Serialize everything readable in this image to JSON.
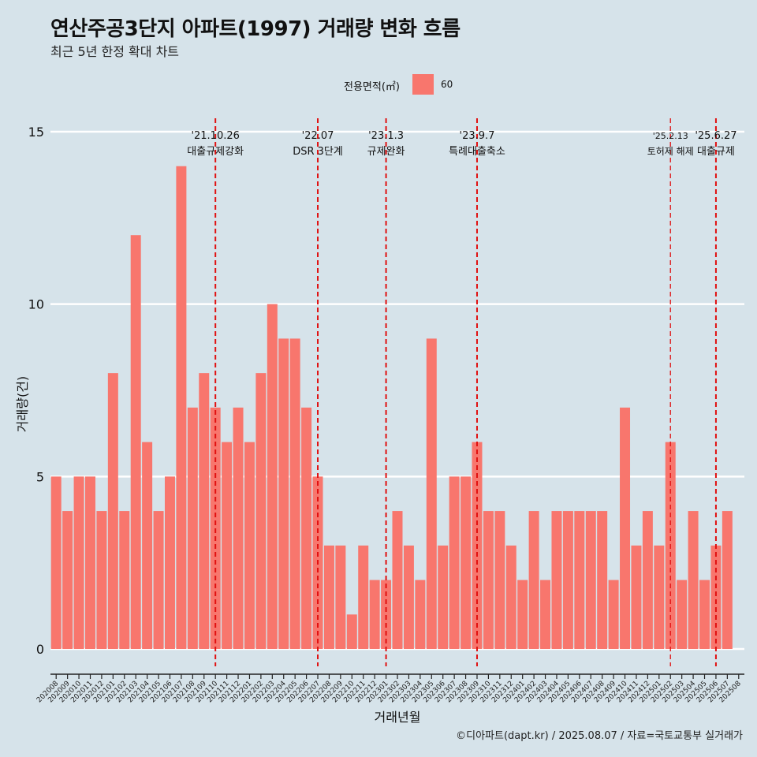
{
  "header": {
    "title": "연산주공3단지 아파트(1997) 거래량 변화 흐름",
    "subtitle": "최근 5년 한정 확대 차트"
  },
  "legend": {
    "title": "전용면적(㎡)",
    "items": [
      {
        "label": "60",
        "color": "#f8766d"
      }
    ]
  },
  "caption": "©디아파트(dapt.kr) / 2025.08.07 / 자료=국토교통부 실거래가",
  "chart_data": {
    "type": "bar",
    "title": "연산주공3단지 아파트(1997) 거래량 변화 흐름",
    "subtitle": "최근 5년 한정 확대 차트",
    "xlabel": "거래년월",
    "ylabel": "거래량(건)",
    "ylim": [
      -0.6,
      16
    ],
    "yticks": [
      0,
      5,
      10,
      15
    ],
    "grid": "horizontal",
    "legend_position": "top",
    "bar_color": "#f8766d",
    "categories": [
      "202008",
      "202009",
      "202010",
      "202011",
      "202012",
      "202101",
      "202102",
      "202103",
      "202104",
      "202105",
      "202106",
      "202107",
      "202108",
      "202109",
      "202110",
      "202111",
      "202112",
      "202201",
      "202202",
      "202203",
      "202204",
      "202205",
      "202206",
      "202207",
      "202208",
      "202209",
      "202210",
      "202211",
      "202212",
      "202301",
      "202302",
      "202303",
      "202304",
      "202305",
      "202306",
      "202307",
      "202308",
      "202309",
      "202310",
      "202311",
      "202312",
      "202401",
      "202402",
      "202403",
      "202404",
      "202405",
      "202406",
      "202407",
      "202408",
      "202409",
      "202410",
      "202411",
      "202412",
      "202501",
      "202502",
      "202503",
      "202504",
      "202505",
      "202506",
      "202507",
      "202508"
    ],
    "series": [
      {
        "name": "60",
        "values": [
          5,
          4,
          5,
          5,
          4,
          8,
          4,
          12,
          6,
          4,
          5,
          14,
          7,
          8,
          7,
          6,
          7,
          6,
          8,
          10,
          9,
          9,
          7,
          5,
          3,
          3,
          1,
          3,
          2,
          2,
          4,
          3,
          2,
          9,
          3,
          5,
          5,
          6,
          4,
          4,
          3,
          2,
          4,
          2,
          4,
          4,
          4,
          4,
          4,
          2,
          7,
          3,
          4,
          3,
          6,
          2,
          4,
          2,
          3,
          4,
          0
        ]
      }
    ],
    "annotations": [
      {
        "category": "202110",
        "date": "'21.10.26",
        "text": "대출규제강화",
        "style": "dashed"
      },
      {
        "category": "202207",
        "date": "'22.07",
        "text": "DSR 3단계",
        "style": "dashed"
      },
      {
        "category": "202301",
        "date": "'23.1.3",
        "text": "규제완화",
        "style": "dashed"
      },
      {
        "category": "202309",
        "date": "'23.9.7",
        "text": "특례대출축소",
        "style": "dashed"
      },
      {
        "category": "202502",
        "date": "'25.2.13",
        "text": "토허제 해제",
        "style": "dashed-thin"
      },
      {
        "category": "202506",
        "date": "'25.6.27",
        "text": "대출규제",
        "style": "dashed"
      }
    ]
  }
}
